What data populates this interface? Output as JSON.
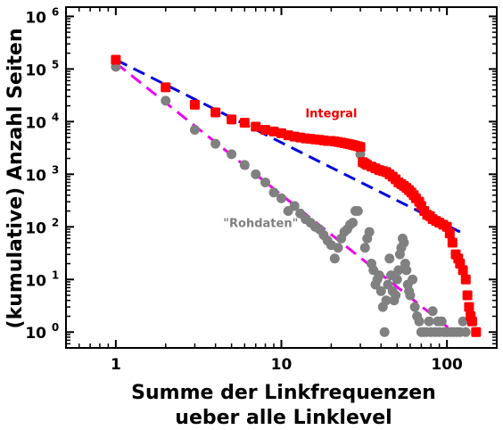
{
  "chart_data": {
    "type": "scatter",
    "xscale": "log",
    "yscale": "log",
    "xlim": [
      0.5,
      200
    ],
    "ylim": [
      0.5,
      1500000
    ],
    "xticks": [
      {
        "value": 1,
        "label": "1"
      },
      {
        "value": 10,
        "label": "10"
      },
      {
        "value": 100,
        "label": "100"
      }
    ],
    "yticks": [
      {
        "value": 1,
        "label": "10",
        "exp": "0"
      },
      {
        "value": 10,
        "label": "10",
        "exp": "1"
      },
      {
        "value": 100,
        "label": "10",
        "exp": "2"
      },
      {
        "value": 1000,
        "label": "10",
        "exp": "3"
      },
      {
        "value": 10000,
        "label": "10",
        "exp": "4"
      },
      {
        "value": 100000,
        "label": "10",
        "exp": "5"
      },
      {
        "value": 1000000,
        "label": "10",
        "exp": "6"
      }
    ],
    "xlabel_lines": [
      "Summe der Linkfrequenzen",
      "ueber alle Linklevel"
    ],
    "ylabel": "(kumulative) Anzahl Seiten",
    "annotations": [
      {
        "text": "Integral",
        "color": "#ee0000",
        "x": 20,
        "y": 12000
      },
      {
        "text": "\"Rohdaten\"",
        "color": "#808080",
        "x": 7.5,
        "y": 100
      }
    ],
    "series": [
      {
        "marker": "square",
        "color": "#ff0000",
        "points": [
          [
            1,
            150000
          ],
          [
            2,
            45000
          ],
          [
            3,
            21000
          ],
          [
            4,
            15000
          ],
          [
            5,
            11000
          ],
          [
            6,
            9500
          ],
          [
            7,
            8000
          ],
          [
            8,
            7000
          ],
          [
            9,
            6500
          ],
          [
            10,
            6000
          ],
          [
            11,
            5500
          ],
          [
            12,
            5200
          ],
          [
            13,
            5000
          ],
          [
            14,
            4800
          ],
          [
            15,
            4700
          ],
          [
            16,
            4600
          ],
          [
            17,
            4500
          ],
          [
            18,
            4400
          ],
          [
            19,
            4300
          ],
          [
            20,
            4300
          ],
          [
            21,
            4200
          ],
          [
            22,
            4100
          ],
          [
            23,
            4000
          ],
          [
            24,
            3900
          ],
          [
            25,
            3800
          ],
          [
            26,
            3700
          ],
          [
            27,
            3600
          ],
          [
            28,
            3500
          ],
          [
            29,
            3400
          ],
          [
            30,
            3300
          ],
          [
            31,
            1700
          ],
          [
            32,
            1600
          ],
          [
            33,
            1500
          ],
          [
            35,
            1400
          ],
          [
            37,
            1300
          ],
          [
            39,
            1200
          ],
          [
            41,
            1150
          ],
          [
            43,
            1100
          ],
          [
            45,
            1000
          ],
          [
            47,
            900
          ],
          [
            49,
            800
          ],
          [
            51,
            700
          ],
          [
            53,
            650
          ],
          [
            55,
            600
          ],
          [
            57,
            550
          ],
          [
            59,
            500
          ],
          [
            61,
            450
          ],
          [
            63,
            400
          ],
          [
            65,
            350
          ],
          [
            68,
            300
          ],
          [
            70,
            250
          ],
          [
            73,
            200
          ],
          [
            76,
            170
          ],
          [
            79,
            160
          ],
          [
            82,
            140
          ],
          [
            86,
            130
          ],
          [
            90,
            120
          ],
          [
            95,
            110
          ],
          [
            100,
            100
          ],
          [
            104,
            75
          ],
          [
            108,
            50
          ],
          [
            113,
            30
          ],
          [
            117,
            25
          ],
          [
            120,
            20
          ],
          [
            125,
            15
          ],
          [
            130,
            10
          ],
          [
            133,
            5
          ],
          [
            136,
            3
          ],
          [
            139,
            2
          ],
          [
            142,
            1.6
          ],
          [
            150,
            1
          ]
        ]
      },
      {
        "marker": "circle",
        "color": "#808080",
        "points": [
          [
            1,
            110000
          ],
          [
            2,
            25000
          ],
          [
            3,
            7000
          ],
          [
            4,
            3800
          ],
          [
            5,
            2400
          ],
          [
            6,
            1500
          ],
          [
            7,
            1000
          ],
          [
            8,
            700
          ],
          [
            9,
            450
          ],
          [
            10,
            350
          ],
          [
            11,
            200
          ],
          [
            12,
            250
          ],
          [
            13,
            180
          ],
          [
            14,
            140
          ],
          [
            15,
            120
          ],
          [
            16,
            100
          ],
          [
            17,
            90
          ],
          [
            18,
            70
          ],
          [
            19,
            55
          ],
          [
            20,
            45
          ],
          [
            21,
            25
          ],
          [
            22,
            40
          ],
          [
            23,
            60
          ],
          [
            24,
            80
          ],
          [
            25,
            90
          ],
          [
            26,
            110
          ],
          [
            27,
            120
          ],
          [
            28,
            200
          ],
          [
            29,
            200
          ],
          [
            30,
            2400
          ],
          [
            32,
            40
          ],
          [
            33,
            60
          ],
          [
            34,
            80
          ],
          [
            35,
            20
          ],
          [
            36,
            15
          ],
          [
            37,
            8
          ],
          [
            38,
            10
          ],
          [
            39,
            12
          ],
          [
            40,
            6
          ],
          [
            41,
            3
          ],
          [
            42,
            1
          ],
          [
            43,
            4
          ],
          [
            44,
            8
          ],
          [
            45,
            25
          ],
          [
            46,
            12
          ],
          [
            47,
            6
          ],
          [
            48,
            4
          ],
          [
            49,
            5
          ],
          [
            50,
            10
          ],
          [
            51,
            15
          ],
          [
            52,
            30
          ],
          [
            53,
            40
          ],
          [
            54,
            60
          ],
          [
            55,
            50
          ],
          [
            56,
            20
          ],
          [
            57,
            15
          ],
          [
            58,
            8
          ],
          [
            59,
            6
          ],
          [
            60,
            5
          ],
          [
            62,
            10
          ],
          [
            64,
            3
          ],
          [
            66,
            2
          ],
          [
            68,
            1.6
          ],
          [
            70,
            1
          ],
          [
            72,
            1
          ],
          [
            75,
            1
          ],
          [
            78,
            1.6
          ],
          [
            80,
            1
          ],
          [
            82,
            2.5
          ],
          [
            85,
            1
          ],
          [
            88,
            1.6
          ],
          [
            90,
            1
          ],
          [
            93,
            1.6
          ],
          [
            96,
            1
          ],
          [
            100,
            1
          ],
          [
            105,
            1
          ],
          [
            110,
            1
          ],
          [
            115,
            1
          ],
          [
            120,
            1
          ],
          [
            125,
            1.6
          ],
          [
            130,
            1
          ]
        ]
      }
    ],
    "fit_lines": [
      {
        "color": "#0000dd",
        "dash": "dashed",
        "from": [
          1,
          150000
        ],
        "to": [
          120,
          80
        ]
      },
      {
        "color": "#ee00ee",
        "dash": "dashed",
        "from": [
          1,
          130000
        ],
        "to": [
          110,
          1
        ]
      }
    ]
  }
}
